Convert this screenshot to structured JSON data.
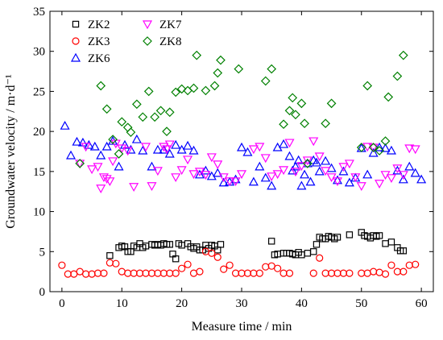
{
  "chart_data": {
    "type": "scatter",
    "xlabel": "Measure time / min",
    "ylabel": "Groundwater velocity / m·d⁻¹",
    "xlim": [
      -2,
      62
    ],
    "ylim": [
      0,
      35
    ],
    "xticks": [
      0,
      10,
      20,
      30,
      40,
      50,
      60
    ],
    "yticks": [
      0,
      5,
      10,
      15,
      20,
      25,
      30,
      35
    ],
    "x_tick_labels": [
      "0",
      "10",
      "20",
      "30",
      "40",
      "50",
      "60"
    ],
    "y_tick_labels": [
      "0",
      "5",
      "10",
      "15",
      "20",
      "25",
      "30",
      "35"
    ],
    "legend": {
      "placement": "top-left",
      "entries": [
        "ZK2",
        "ZK3",
        "ZK6",
        "ZK7",
        "ZK8"
      ]
    },
    "series": [
      {
        "name": "ZK2",
        "marker": "square",
        "color": "#000000",
        "x": [
          8,
          9.5,
          10,
          10.5,
          11,
          11.5,
          12,
          12.5,
          13,
          13.5,
          14,
          15,
          15.5,
          16,
          16.5,
          17,
          17.5,
          18,
          18.5,
          19,
          19.5,
          20,
          21,
          21.5,
          22,
          22.5,
          23,
          23.5,
          24,
          24.5,
          25,
          25.5,
          26,
          26.5,
          35,
          35.5,
          36,
          37,
          37.5,
          38,
          38.5,
          39,
          39.5,
          40,
          41,
          42,
          42.5,
          43,
          43.5,
          44,
          44.5,
          45,
          45.5,
          46,
          48,
          50,
          50.5,
          51,
          51.5,
          52,
          52.5,
          53,
          54,
          55,
          56,
          56.5,
          57
        ],
        "y": [
          4.5,
          5.5,
          5.7,
          5.6,
          5.0,
          5.0,
          5.7,
          5.5,
          6.0,
          5.5,
          5.7,
          5.9,
          5.8,
          5.9,
          5.8,
          6.0,
          5.9,
          5.9,
          4.7,
          4.1,
          6.0,
          5.8,
          6.0,
          5.6,
          5.4,
          5.6,
          5.2,
          5.2,
          5.8,
          5.4,
          5.8,
          5.7,
          5.2,
          5.9,
          6.3,
          4.6,
          4.7,
          4.8,
          4.8,
          4.8,
          4.7,
          4.6,
          4.9,
          4.6,
          4.8,
          5.0,
          5.9,
          6.8,
          6.6,
          6.6,
          6.9,
          6.8,
          6.6,
          6.8,
          7.1,
          7.4,
          7.0,
          6.9,
          6.7,
          7.0,
          6.9,
          7.0,
          6.0,
          6.2,
          5.5,
          5.1,
          5.1
        ]
      },
      {
        "name": "ZK3",
        "marker": "circle",
        "color": "#ff0000",
        "x": [
          0,
          1,
          2,
          3,
          4,
          5,
          6,
          7,
          8,
          9,
          10,
          11,
          12,
          13,
          14,
          15,
          16,
          17,
          18,
          19,
          20,
          21,
          22,
          23,
          24,
          25,
          26,
          27,
          28,
          29,
          30,
          31,
          32,
          33,
          34,
          35,
          36,
          37,
          38,
          42,
          43,
          44,
          45,
          46,
          47,
          48,
          50,
          51,
          52,
          53,
          54,
          55,
          56,
          57,
          58,
          59
        ],
        "y": [
          3.3,
          2.2,
          2.2,
          2.5,
          2.2,
          2.2,
          2.3,
          2.3,
          3.6,
          3.5,
          2.5,
          2.3,
          2.3,
          2.3,
          2.3,
          2.3,
          2.3,
          2.3,
          2.3,
          2.3,
          2.9,
          3.4,
          2.3,
          2.5,
          5.0,
          4.8,
          4.3,
          2.8,
          3.3,
          2.3,
          2.3,
          2.3,
          2.3,
          2.3,
          3.1,
          3.2,
          2.9,
          2.3,
          2.3,
          2.3,
          4.2,
          2.3,
          2.3,
          2.3,
          2.3,
          2.3,
          2.3,
          2.3,
          2.5,
          2.4,
          2.2,
          3.3,
          2.5,
          2.5,
          3.3,
          3.4
        ]
      },
      {
        "name": "ZK6",
        "marker": "triangle-up",
        "color": "#0000ff",
        "x": [
          0.5,
          1.5,
          2.5,
          3.5,
          4.5,
          5.5,
          6.5,
          7.5,
          8.5,
          9.5,
          10.5,
          11.5,
          12.5,
          13.5,
          15,
          16,
          17,
          18,
          19,
          20,
          21,
          22,
          23,
          24,
          25,
          26,
          27,
          28,
          29,
          30,
          31,
          32,
          33,
          34,
          35,
          36,
          37,
          38,
          38.5,
          39,
          39.5,
          40,
          40.5,
          41,
          41.5,
          42,
          42.5,
          43,
          44,
          45,
          46,
          47,
          48,
          49,
          50,
          51,
          52,
          53,
          54,
          55,
          56,
          57,
          58,
          59,
          60
        ],
        "y": [
          20.7,
          17.0,
          18.7,
          18.6,
          18.3,
          18.1,
          17.0,
          18.1,
          18.8,
          15.6,
          18.3,
          17.7,
          19.0,
          17.6,
          15.6,
          17.7,
          17.7,
          17.2,
          18.3,
          17.7,
          18.2,
          17.6,
          14.6,
          15.1,
          14.4,
          14.8,
          13.6,
          13.7,
          14.0,
          18.0,
          17.4,
          13.7,
          15.6,
          14.2,
          13.2,
          18.0,
          18.4,
          16.9,
          15.1,
          15.6,
          16.4,
          13.2,
          14.6,
          16.0,
          13.7,
          16.4,
          16.1,
          15.0,
          16.3,
          15.4,
          13.9,
          15.0,
          13.6,
          14.2,
          17.9,
          14.6,
          17.3,
          18.0,
          17.9,
          17.6,
          15.1,
          14.0,
          15.6,
          14.8,
          14.0
        ]
      },
      {
        "name": "ZK7",
        "marker": "triangle-down",
        "color": "#ff00ff",
        "x": [
          3,
          4,
          5,
          6,
          6.5,
          7,
          7.5,
          8,
          8.5,
          9,
          10,
          11,
          12,
          14,
          15,
          16,
          17,
          17.5,
          18,
          19,
          20,
          21,
          22,
          23,
          24,
          25,
          26,
          27,
          28,
          29,
          30,
          32,
          33,
          34,
          35,
          36,
          37,
          38,
          39,
          40,
          41,
          42,
          43,
          44,
          45,
          46,
          47,
          48,
          49,
          50,
          51,
          52,
          53,
          54,
          55,
          56,
          57,
          58,
          59
        ],
        "y": [
          16.0,
          18.1,
          15.3,
          15.6,
          12.9,
          14.3,
          14.1,
          13.8,
          16.3,
          18.5,
          17.9,
          17.6,
          13.1,
          18.1,
          13.2,
          15.1,
          18.1,
          17.8,
          18.4,
          14.3,
          15.2,
          16.5,
          14.7,
          15.0,
          14.6,
          16.8,
          15.9,
          14.3,
          13.8,
          13.8,
          14.7,
          17.8,
          18.1,
          16.7,
          14.4,
          14.7,
          15.2,
          18.6,
          15.0,
          15.7,
          16.4,
          18.8,
          16.9,
          15.1,
          14.3,
          13.8,
          15.6,
          16.0,
          14.3,
          13.2,
          18.1,
          18.0,
          13.5,
          14.6,
          14.2,
          15.4,
          14.6,
          17.9,
          17.8
        ]
      },
      {
        "name": "ZK8",
        "marker": "diamond",
        "color": "#008000",
        "x": [
          3,
          6.5,
          7.5,
          8.5,
          9.5,
          10,
          11,
          11.5,
          12.5,
          13.5,
          14.5,
          15.5,
          16.5,
          17.5,
          18,
          19,
          20,
          21,
          22,
          22.5,
          24,
          25.5,
          26,
          26.5,
          29.5,
          34,
          35,
          37,
          38,
          38.5,
          39,
          40,
          40.5,
          41,
          44,
          45,
          50,
          51,
          52,
          53,
          54,
          54.5,
          56,
          57
        ],
        "y": [
          16.0,
          25.7,
          22.8,
          19.0,
          17.2,
          21.2,
          20.5,
          19.9,
          23.4,
          21.8,
          25.0,
          21.8,
          22.6,
          20.0,
          22.4,
          24.9,
          25.3,
          25.1,
          25.4,
          29.5,
          25.1,
          25.7,
          27.3,
          28.9,
          27.8,
          26.3,
          27.8,
          20.9,
          22.6,
          24.2,
          22.1,
          23.5,
          21.0,
          16.0,
          21.0,
          23.5,
          18.0,
          25.7,
          18.0,
          17.6,
          18.8,
          24.3,
          26.9,
          29.5
        ]
      }
    ]
  }
}
